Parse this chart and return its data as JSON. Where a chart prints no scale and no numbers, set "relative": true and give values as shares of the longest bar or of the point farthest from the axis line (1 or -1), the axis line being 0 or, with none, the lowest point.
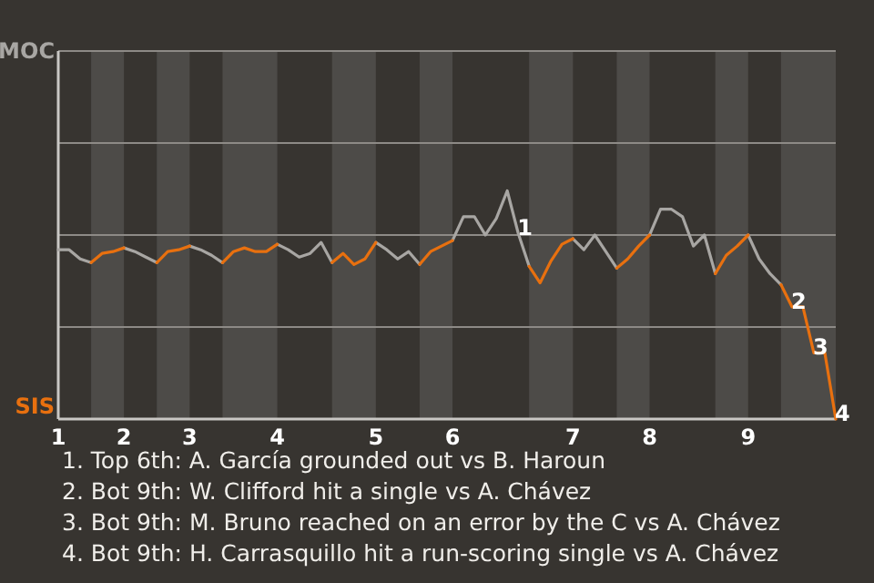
{
  "chart_data": {
    "type": "line",
    "relative": true,
    "marker": "none",
    "line_style": "solid",
    "categories": [
      "1",
      null,
      null,
      null,
      null,
      null,
      "2",
      null,
      null,
      null,
      null,
      null,
      "3",
      null,
      null,
      null,
      null,
      null,
      null,
      null,
      "4",
      null,
      null,
      null,
      null,
      null,
      null,
      null,
      null,
      "5",
      null,
      null,
      null,
      null,
      null,
      null,
      "6",
      null,
      null,
      null,
      null,
      null,
      null,
      null,
      null,
      null,
      null,
      "7",
      null,
      null,
      null,
      null,
      null,
      null,
      "8",
      null,
      null,
      null,
      null,
      null,
      null,
      null,
      null,
      "9",
      null,
      null,
      null,
      null,
      null,
      null,
      null,
      null
    ],
    "series": [
      {
        "color": "#a8a6a3",
        "values": [
          -0.08,
          -0.08,
          -0.13,
          -0.15,
          null,
          null,
          -0.07,
          -0.09,
          -0.12,
          -0.15,
          null,
          null,
          -0.06,
          -0.08,
          -0.11,
          -0.15,
          null,
          null,
          null,
          null,
          -0.05,
          -0.08,
          -0.12,
          -0.1,
          -0.04,
          -0.15,
          null,
          null,
          null,
          -0.04,
          -0.08,
          -0.13,
          -0.09,
          -0.16,
          null,
          null,
          -0.03,
          0.1,
          0.1,
          0,
          0.09,
          0.24,
          0.01,
          -0.17,
          null,
          null,
          null,
          -0.02,
          -0.08,
          0,
          -0.09,
          -0.18,
          null,
          null,
          0,
          0.14,
          0.14,
          0.1,
          -0.06,
          0,
          -0.21,
          null,
          null,
          0,
          -0.13,
          -0.21,
          -0.27,
          null,
          null,
          null,
          null,
          null
        ]
      },
      {
        "color": "#e8700f",
        "values": [
          null,
          null,
          null,
          -0.15,
          -0.1,
          -0.09,
          -0.07,
          null,
          null,
          -0.15,
          -0.09,
          -0.08,
          -0.06,
          null,
          null,
          -0.15,
          -0.09,
          -0.07,
          -0.09,
          -0.09,
          -0.05,
          null,
          null,
          null,
          null,
          -0.15,
          -0.1,
          -0.16,
          -0.13,
          -0.04,
          null,
          null,
          null,
          -0.16,
          -0.09,
          -0.06,
          -0.03,
          null,
          null,
          null,
          null,
          null,
          null,
          -0.17,
          -0.26,
          -0.14,
          -0.05,
          -0.02,
          null,
          null,
          null,
          -0.18,
          -0.13,
          -0.06,
          0,
          null,
          null,
          null,
          null,
          null,
          -0.21,
          -0.11,
          -0.06,
          0,
          null,
          null,
          -0.27,
          -0.39,
          -0.39,
          -0.64,
          -0.64,
          -1
        ]
      }
    ],
    "ref_lines": [
      {
        "axis": "y",
        "value": 0.5,
        "color": "#8d8a86"
      },
      {
        "axis": "y",
        "value": 0,
        "color": "#8d8a86"
      },
      {
        "axis": "y",
        "value": -0.5,
        "color": "#8d8a86"
      }
    ],
    "annotations": [
      "MOC",
      "SIS",
      {
        "text": "1",
        "y": 0.01
      },
      {
        "text": "2",
        "y": -0.39
      },
      {
        "text": "3",
        "y": -0.64
      },
      {
        "text": "4",
        "y": -1
      },
      "1. Top 6th: A. García grounded out vs B. Haroun",
      "2. Bot 9th: W. Clifford hit a single vs A. Chávez",
      "3. Bot 9th: M. Bruno reached on an error by the C vs A. Chávez",
      "4. Bot 9th: H. Carrasquillo hit a run-scoring single vs A. Chávez"
    ]
  }
}
